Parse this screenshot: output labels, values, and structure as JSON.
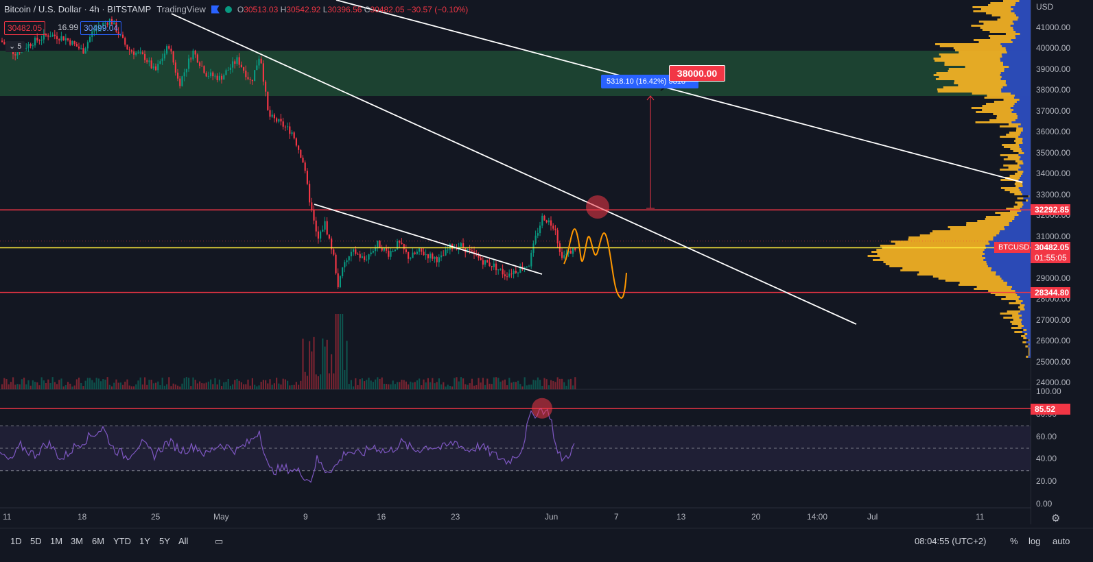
{
  "header": {
    "symbol": "Bitcoin / U.S. Dollar · 4h · BITSTAMP",
    "brand": "TradingView",
    "o_label": "O",
    "o": "30513.03",
    "h_label": "H",
    "h": "30542.92",
    "l_label": "L",
    "l": "30396.56",
    "c_label": "C",
    "c": "30482.05",
    "change": "−30.57 (−0.10%)",
    "sell_price": "30482.05",
    "spread": "16.99",
    "buy_price": "30499.04",
    "indicator_count": "5"
  },
  "price_axis": {
    "currency": "USD",
    "ticks": [
      "41000.00",
      "40000.00",
      "39000.00",
      "38000.00",
      "37000.00",
      "36000.00",
      "35000.00",
      "34000.00",
      "33000.00",
      "32000.00",
      "31000.00",
      "29000.00",
      "28000.00",
      "27000.00",
      "26000.00",
      "25000.00",
      "24000.00"
    ],
    "level_upper": "32292.85",
    "symbol_tag": "BTCUSD",
    "last_price": "30482.05",
    "countdown": "01:55:05",
    "level_lower": "28344.80"
  },
  "rsi_axis": {
    "ticks": [
      "100.00",
      "80.00",
      "60.00",
      "40.00",
      "20.00",
      "0.00"
    ],
    "level": "85.52"
  },
  "time_axis": [
    "11",
    "18",
    "25",
    "May",
    "9",
    "16",
    "23",
    "Jun",
    "7",
    "13",
    "20",
    "14:00",
    "Jul",
    "11"
  ],
  "annotations": {
    "target": "38000.00",
    "measure": "5318.10 (16.42%) 5318"
  },
  "toolbar": {
    "ranges": [
      "1D",
      "5D",
      "1M",
      "3M",
      "6M",
      "YTD",
      "1Y",
      "5Y",
      "All"
    ],
    "clock": "08:04:55 (UTC+2)",
    "percent": "%",
    "log": "log",
    "auto": "auto"
  },
  "colors": {
    "bg": "#131722",
    "up": "#089981",
    "down": "#f23645",
    "level_line": "#f23645",
    "last_price_line": "#ffeb3b",
    "rsi": "#7e57c2",
    "zone": "#1e4a34",
    "vp_orange": "#f5b324",
    "vp_blue": "#1640c6",
    "projection": "#ff9800"
  },
  "chart_data": {
    "type": "candlestick",
    "symbol": "BTCUSD",
    "interval": "4h",
    "ylim": [
      23800,
      42000
    ],
    "levels": [
      32292.85,
      28344.8
    ],
    "last": 30482.05,
    "target": 38000,
    "rsi_level": 85.52
  }
}
